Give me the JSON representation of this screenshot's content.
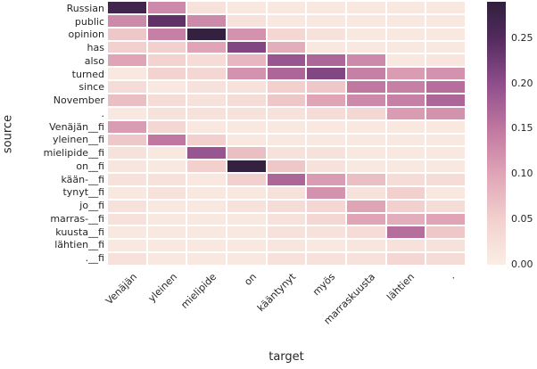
{
  "figure": {
    "xlabel": "target",
    "ylabel": "source"
  },
  "chart_data": {
    "type": "heatmap",
    "title": "",
    "xlabel": "target",
    "ylabel": "source",
    "x_categories": [
      "Venäjän",
      "yleinen",
      "mielipide",
      "on",
      "kääntynyt",
      "myös",
      "marraskuusta",
      "lähtien",
      "."
    ],
    "y_categories": [
      "Russian",
      "public",
      "opinion",
      "has",
      "also",
      "turned",
      "since",
      "November",
      ".",
      "Venäjän__fi",
      "yleinen__fi",
      "mielipide__fi",
      "on__fi",
      "kään-__fi",
      "tynyt__fi",
      "jo__fi",
      "marras-__fi",
      "kuusta__fi",
      "lähtien__fi",
      ".__fi"
    ],
    "values": [
      [
        0.27,
        0.13,
        0.02,
        0.01,
        0.01,
        0.01,
        0.01,
        0.01,
        0.01
      ],
      [
        0.13,
        0.24,
        0.13,
        0.02,
        0.01,
        0.01,
        0.01,
        0.01,
        0.01
      ],
      [
        0.06,
        0.14,
        0.285,
        0.12,
        0.04,
        0.02,
        0.01,
        0.01,
        0.01
      ],
      [
        0.05,
        0.05,
        0.1,
        0.21,
        0.09,
        0.01,
        0.01,
        0.01,
        0.01
      ],
      [
        0.1,
        0.045,
        0.03,
        0.08,
        0.19,
        0.17,
        0.13,
        0.01,
        0.015
      ],
      [
        0.01,
        0.045,
        0.04,
        0.12,
        0.17,
        0.21,
        0.14,
        0.11,
        0.12
      ],
      [
        0.03,
        0.01,
        0.02,
        0.02,
        0.05,
        0.06,
        0.15,
        0.14,
        0.16
      ],
      [
        0.07,
        0.03,
        0.02,
        0.03,
        0.06,
        0.1,
        0.13,
        0.14,
        0.17
      ],
      [
        0.01,
        0.02,
        0.02,
        0.02,
        0.02,
        0.03,
        0.04,
        0.11,
        0.12
      ],
      [
        0.11,
        0.04,
        0.01,
        0.01,
        0.01,
        0.01,
        0.01,
        0.01,
        0.01
      ],
      [
        0.06,
        0.15,
        0.05,
        0.01,
        0.01,
        0.01,
        0.01,
        0.01,
        0.01
      ],
      [
        0.02,
        0.01,
        0.19,
        0.07,
        0.02,
        0.02,
        0.01,
        0.01,
        0.01
      ],
      [
        0.015,
        0.01,
        0.05,
        0.285,
        0.06,
        0.02,
        0.01,
        0.01,
        0.01
      ],
      [
        0.02,
        0.02,
        0.01,
        0.05,
        0.17,
        0.11,
        0.07,
        0.03,
        0.03
      ],
      [
        0.01,
        0.02,
        0.01,
        0.01,
        0.02,
        0.12,
        0.02,
        0.05,
        0.01
      ],
      [
        0.02,
        0.01,
        0.01,
        0.02,
        0.03,
        0.04,
        0.1,
        0.05,
        0.03
      ],
      [
        0.02,
        0.01,
        0.01,
        0.01,
        0.02,
        0.04,
        0.1,
        0.09,
        0.1
      ],
      [
        0.01,
        0.01,
        0.01,
        0.01,
        0.02,
        0.02,
        0.03,
        0.16,
        0.06
      ],
      [
        0.01,
        0.01,
        0.01,
        0.01,
        0.015,
        0.01,
        0.015,
        0.02,
        0.02
      ],
      [
        0.02,
        0.01,
        0.01,
        0.01,
        0.02,
        0.02,
        0.02,
        0.04,
        0.03
      ]
    ],
    "vmin": 0.0,
    "vmax": 0.29,
    "grid": true,
    "legend_position": "right-colorbar",
    "colorbar": {
      "tick_values": [
        0.25,
        0.2,
        0.15,
        0.1,
        0.05,
        0.0
      ],
      "tick_labels": [
        "0.25",
        "0.20",
        "0.15",
        "0.10",
        "0.05",
        "0.00"
      ]
    },
    "colormap_stops": [
      [
        0.0,
        "#faeee4"
      ],
      [
        0.05,
        "#f2d0cd"
      ],
      [
        0.1,
        "#dfa5b7"
      ],
      [
        0.15,
        "#c077a0"
      ],
      [
        0.2,
        "#8e4e8c"
      ],
      [
        0.25,
        "#532a5e"
      ],
      [
        0.29,
        "#30203c"
      ]
    ]
  }
}
